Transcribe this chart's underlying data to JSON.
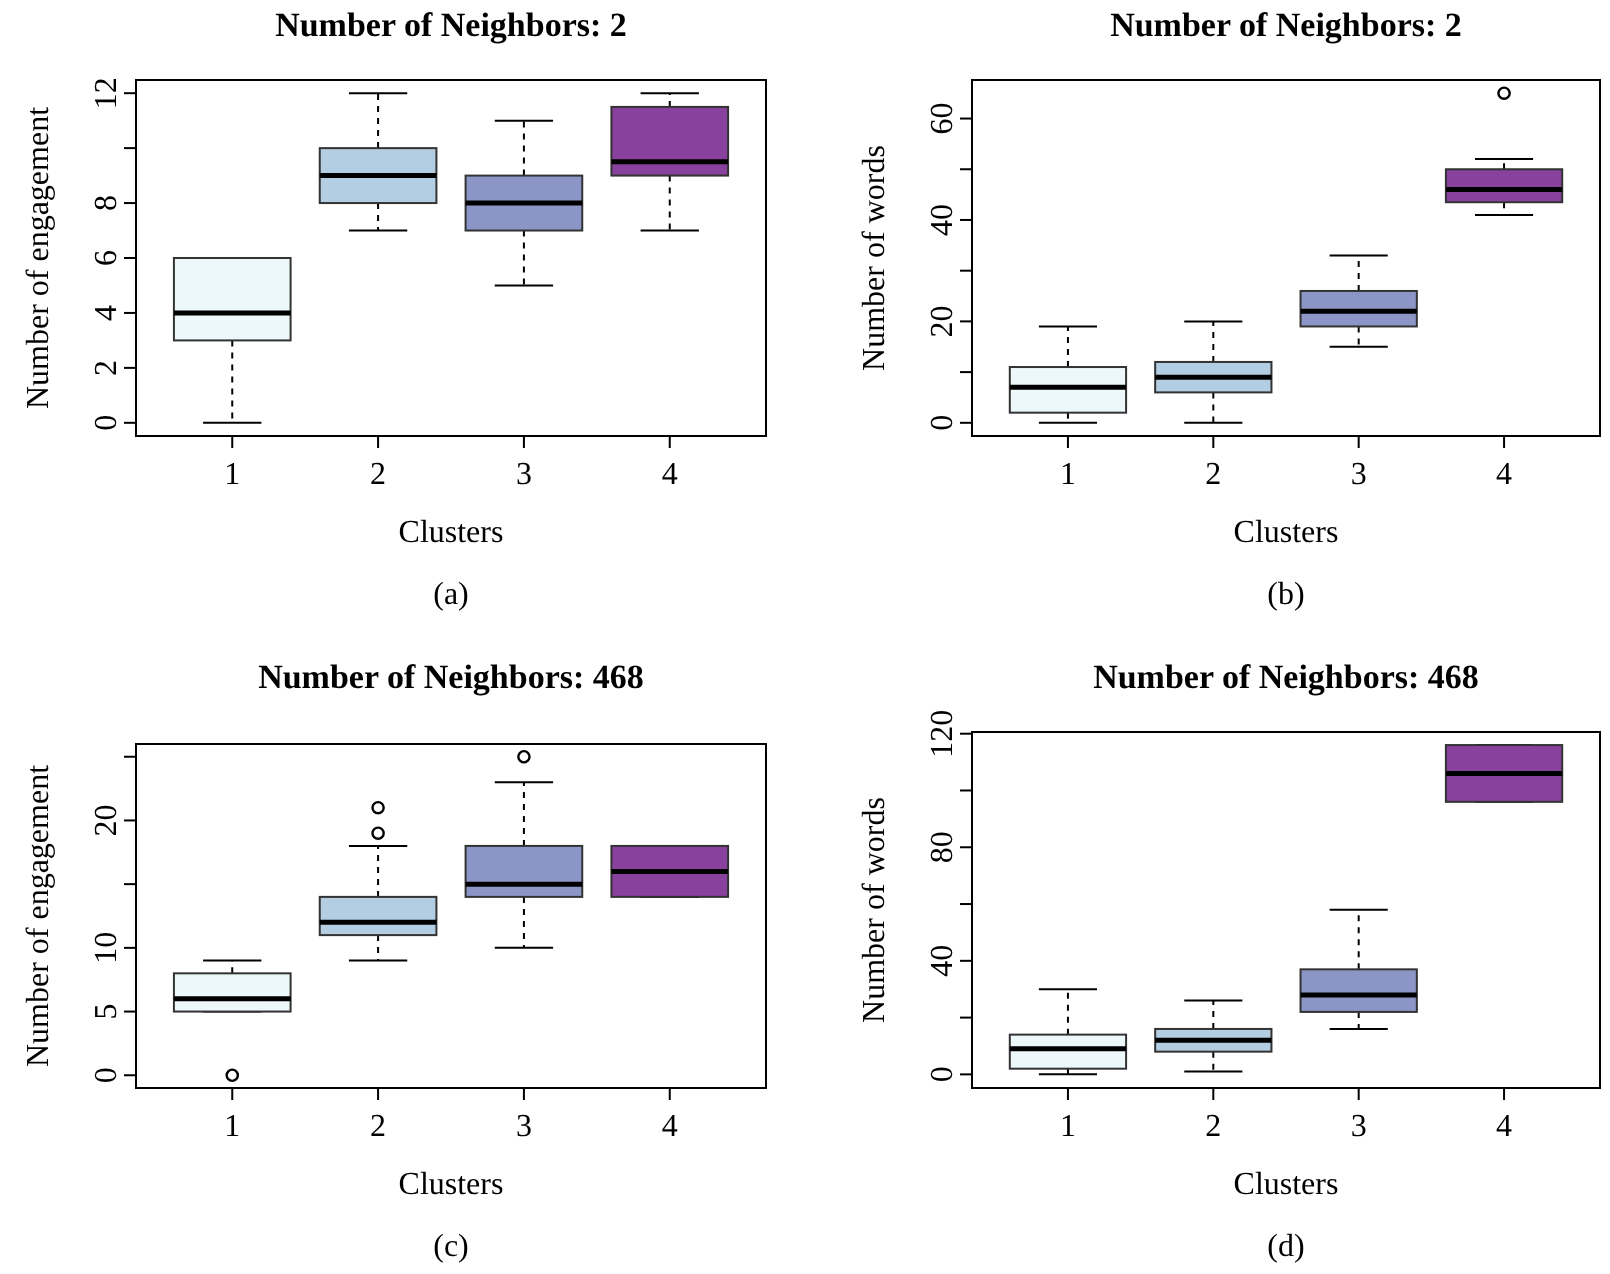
{
  "chart_data": [
    {
      "type": "box",
      "title": "Number of Neighbors: 2",
      "xlabel": "Clusters",
      "ylabel": "Number of engagement",
      "annotations": [
        "(a)"
      ],
      "categories": [
        "1",
        "2",
        "3",
        "4"
      ],
      "colors": [
        "#edf8fb",
        "#b3cde3",
        "#8c96c6",
        "#88419d"
      ],
      "ylim": [
        -0.48,
        12.48
      ],
      "yticks": [
        0,
        2,
        4,
        6,
        8,
        {
          "value": 10,
          "label": null
        },
        12
      ],
      "boxes": [
        {
          "low": 0,
          "q1": 3,
          "median": 4,
          "q3": 6,
          "high": 6
        },
        {
          "low": 7,
          "q1": 8,
          "median": 9,
          "q3": 10,
          "high": 12
        },
        {
          "low": 5,
          "q1": 7,
          "median": 8,
          "q3": 9,
          "high": 11
        },
        {
          "low": 7,
          "q1": 9,
          "median": 9.5,
          "q3": 11.5,
          "high": 12
        }
      ]
    },
    {
      "type": "box",
      "title": "Number of Neighbors: 2",
      "xlabel": "Clusters",
      "ylabel": "Number of words",
      "annotations": [
        "(b)"
      ],
      "categories": [
        "1",
        "2",
        "3",
        "4"
      ],
      "colors": [
        "#edf8fb",
        "#b3cde3",
        "#8c96c6",
        "#88419d"
      ],
      "ylim": [
        -2.6,
        67.6
      ],
      "yticks": [
        0,
        {
          "value": 10,
          "label": null
        },
        20,
        {
          "value": 30,
          "label": null
        },
        40,
        {
          "value": 50,
          "label": null
        },
        60
      ],
      "boxes": [
        {
          "low": 0,
          "q1": 2,
          "median": 7,
          "q3": 11,
          "high": 19
        },
        {
          "low": 0,
          "q1": 6,
          "median": 9,
          "q3": 12,
          "high": 20
        },
        {
          "low": 15,
          "q1": 19,
          "median": 22,
          "q3": 26,
          "high": 33
        },
        {
          "low": 41,
          "q1": 43.5,
          "median": 46,
          "q3": 50,
          "high": 52,
          "outliers": [
            65
          ]
        }
      ]
    },
    {
      "type": "box",
      "title": "Number of Neighbors: 468",
      "xlabel": "Clusters",
      "ylabel": "Number of engagement",
      "annotations": [
        "(c)"
      ],
      "categories": [
        "1",
        "2",
        "3",
        "4"
      ],
      "colors": [
        "#edf8fb",
        "#b3cde3",
        "#8c96c6",
        "#88419d"
      ],
      "ylim": [
        -1,
        26
      ],
      "yticks": [
        0,
        5,
        10,
        {
          "value": 15,
          "label": null
        },
        20,
        {
          "value": 25,
          "label": null
        }
      ],
      "boxes": [
        {
          "low": 5,
          "q1": 5,
          "median": 6,
          "q3": 8,
          "high": 9,
          "outliers": [
            0
          ]
        },
        {
          "low": 9,
          "q1": 11,
          "median": 12,
          "q3": 14,
          "high": 18,
          "outliers": [
            19,
            21
          ]
        },
        {
          "low": 10,
          "q1": 14,
          "median": 15,
          "q3": 18,
          "high": 23,
          "outliers": [
            25
          ]
        },
        {
          "low": 14,
          "q1": 14,
          "median": 16,
          "q3": 18,
          "high": 18
        }
      ]
    },
    {
      "type": "box",
      "title": "Number of Neighbors: 468",
      "xlabel": "Clusters",
      "ylabel": "Number of words",
      "annotations": [
        "(d)"
      ],
      "categories": [
        "1",
        "2",
        "3",
        "4"
      ],
      "colors": [
        "#edf8fb",
        "#b3cde3",
        "#8c96c6",
        "#88419d"
      ],
      "ylim": [
        -4.8,
        120.6
      ],
      "yticks": [
        0,
        {
          "value": 20,
          "label": null
        },
        40,
        {
          "value": 60,
          "label": null
        },
        80,
        {
          "value": 100,
          "label": null
        },
        120
      ],
      "boxes": [
        {
          "low": 0,
          "q1": 2,
          "median": 9,
          "q3": 14,
          "high": 30
        },
        {
          "low": 1,
          "q1": 8,
          "median": 12,
          "q3": 16,
          "high": 26
        },
        {
          "low": 16,
          "q1": 22,
          "median": 28,
          "q3": 37,
          "high": 58
        },
        {
          "low": 96,
          "q1": 96,
          "median": 106,
          "q3": 116,
          "high": 116
        }
      ]
    }
  ]
}
